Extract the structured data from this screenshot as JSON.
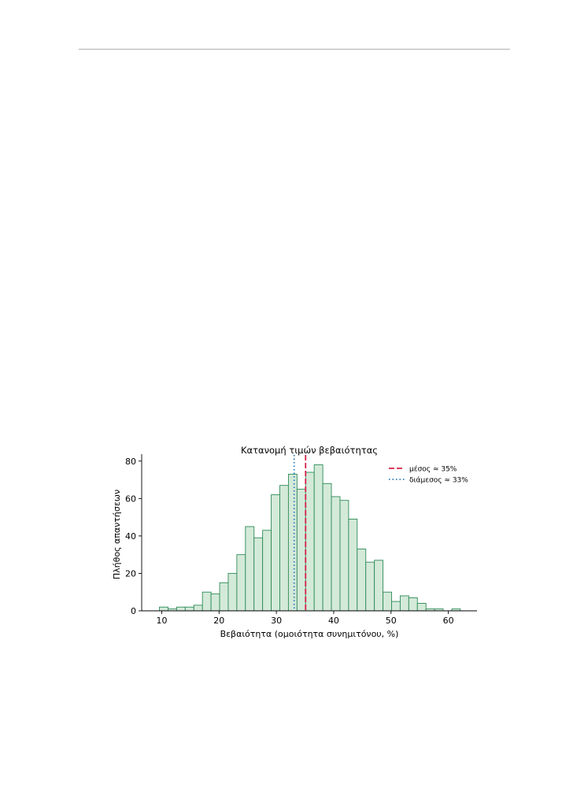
{
  "chart_data": {
    "type": "bar",
    "title": "Κατανομή τιμών βεβαιότητας",
    "xlabel": "Βεβαιότητα (ομοιότητα συνημιτόνου, %)",
    "ylabel": "Πλήθος απαντήσεων",
    "xlim": [
      6.5,
      65
    ],
    "ylim": [
      0,
      82
    ],
    "xticks": [
      "10",
      "20",
      "30",
      "40",
      "50",
      "60"
    ],
    "yticks": [
      "0",
      "20",
      "40",
      "60",
      "80"
    ],
    "bin_edges": [
      9.6,
      11.1,
      12.6,
      14.1,
      15.6,
      17.1,
      18.6,
      20.1,
      21.6,
      23.1,
      24.6,
      26.1,
      27.6,
      29.1,
      30.6,
      32.1,
      33.6,
      35.1,
      36.6,
      38.1,
      39.6,
      41.1,
      42.6,
      44.1,
      45.6,
      47.1,
      48.6,
      50.1,
      51.6,
      53.1,
      54.6,
      56.1,
      57.6,
      59.1,
      60.6,
      62.1
    ],
    "counts": [
      2,
      1,
      2,
      2,
      3,
      10,
      9,
      15,
      20,
      30,
      45,
      39,
      43,
      62,
      67,
      73,
      65,
      74,
      78,
      68,
      61,
      59,
      49,
      33,
      26,
      27,
      10,
      5,
      8,
      7,
      4,
      1,
      1,
      0,
      1
    ],
    "bar_fill": "#d4ead9",
    "bar_edge": "#2e8b57",
    "grid": false,
    "legend_position": "top-right",
    "reference_lines": [
      {
        "label": "μέσος ≈ 35%",
        "x": 35.1,
        "color": "#d62246",
        "style": "dashed"
      },
      {
        "label": "διάμεσος ≈ 33%",
        "x": 33.1,
        "color": "#2a7ab9",
        "style": "dotted"
      }
    ]
  }
}
